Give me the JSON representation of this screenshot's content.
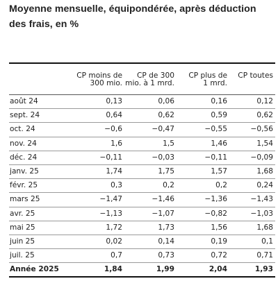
{
  "title": "Moyenne mensuelle, équipondérée, après déduction des frais, en %",
  "table": {
    "headers": [
      "",
      "CP moins de\n300 mio.",
      "CP de 300\nmio. à 1 mrd.",
      "CP plus de\n1 mrd.",
      "CP toutes"
    ],
    "rows": [
      [
        "août 24",
        "0,13",
        "0,06",
        "0,16",
        "0,12"
      ],
      [
        "sept. 24",
        "0,64",
        "0,62",
        "0,59",
        "0,62"
      ],
      [
        "oct. 24",
        "−0,6",
        "−0,47",
        "−0,55",
        "−0,56"
      ],
      [
        "nov. 24",
        "1,6",
        "1,5",
        "1,46",
        "1,54"
      ],
      [
        "déc. 24",
        "−0,11",
        "−0,03",
        "−0,11",
        "−0,09"
      ],
      [
        "janv. 25",
        "1,74",
        "1,75",
        "1,57",
        "1,68"
      ],
      [
        "févr. 25",
        "0,3",
        "0,2",
        "0,2",
        "0,24"
      ],
      [
        "mars 25",
        "−1,47",
        "−1,46",
        "−1,36",
        "−1,43"
      ],
      [
        "avr. 25",
        "−1,13",
        "−1,07",
        "−0,82",
        "−1,03"
      ],
      [
        "mai 25",
        "1,72",
        "1,73",
        "1,56",
        "1,68"
      ],
      [
        "juin 25",
        "0,02",
        "0,14",
        "0,19",
        "0,1"
      ],
      [
        "juil. 25",
        "0,7",
        "0,73",
        "0,72",
        "0,71"
      ]
    ],
    "total": [
      "Année 2025",
      "1,84",
      "1,99",
      "2,04",
      "1,93"
    ]
  }
}
